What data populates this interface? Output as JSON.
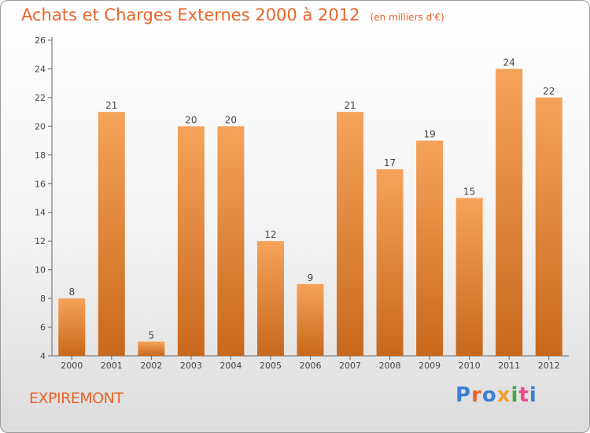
{
  "title": "Achats et Charges Externes 2000 à 2012",
  "unit": "(en milliers d'€)",
  "place": "EXPIREMONT",
  "logo": {
    "text": "Proxiti",
    "colors": [
      "#3a7fd5",
      "#e8642a",
      "#3a7fd5",
      "#f0a030",
      "#3fa83f",
      "#e84a8a",
      "#3a7fd5"
    ]
  },
  "colors": {
    "bar_top": "#f6a35a",
    "bar_bottom": "#c8681c",
    "title": "#e8642a"
  },
  "chart_data": {
    "type": "bar",
    "categories": [
      "2000",
      "2001",
      "2002",
      "2003",
      "2004",
      "2005",
      "2006",
      "2007",
      "2008",
      "2009",
      "2010",
      "2011",
      "2012"
    ],
    "values": [
      8,
      21,
      5,
      20,
      20,
      12,
      9,
      21,
      17,
      19,
      15,
      24,
      22
    ],
    "ylim": [
      4,
      26
    ],
    "yticks": [
      4,
      6,
      8,
      10,
      12,
      14,
      16,
      18,
      20,
      22,
      24,
      26
    ],
    "grid": false,
    "legend": "none"
  }
}
